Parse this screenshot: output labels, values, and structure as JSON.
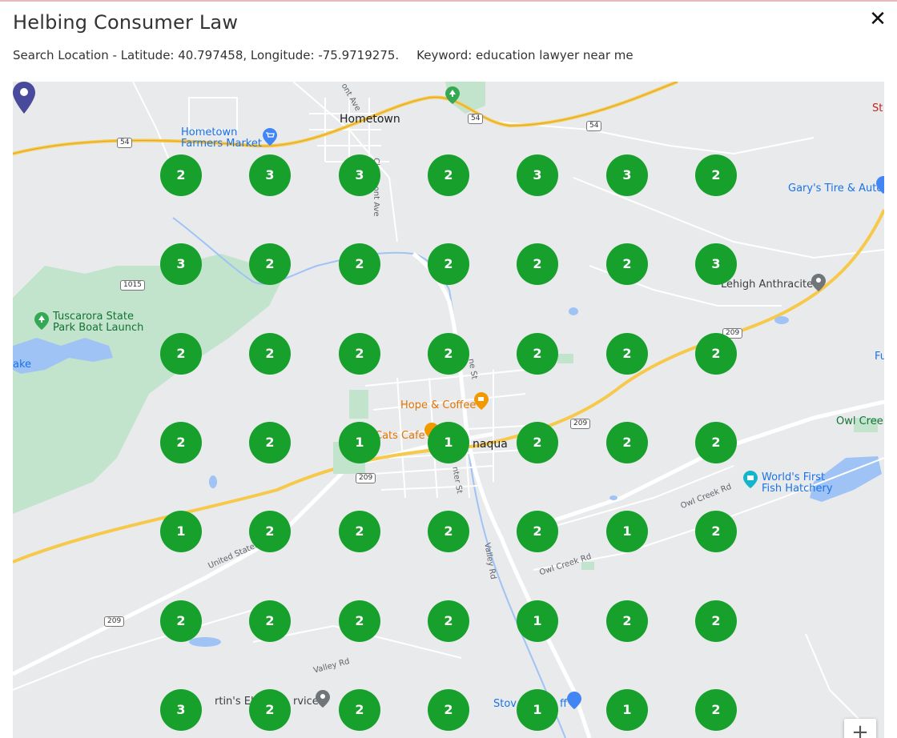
{
  "dialog": {
    "title": "Helbing Consumer Law",
    "close_icon": "close-icon",
    "search_location_text": "Search Location - Latitude: 40.797458, Longitude: -75.9719275.",
    "keyword_text": "Keyword: education lawyer near me"
  },
  "map": {
    "labels": {
      "hometown": "Hometown",
      "farmers_market": "Hometown\nFarmers Market",
      "tuscarora": "Tuscarora State\nPark Boat Launch",
      "gary": "Gary's Tire & Auto",
      "lehigh": "Lehigh Anthracite",
      "hope": "Hope & Coffee",
      "cats": "Cats Cafe",
      "tamaqua": "naqua",
      "owl_creek": "Owl Creek",
      "fish": "World's First\nFish Hatchery",
      "artins": "rtin's Elect",
      "service": "rvice",
      "stov": "Stov",
      "ff": "ff",
      "st": "St",
      "fu": "Fu",
      "lake": "ake",
      "claremont": "Claremont Ave",
      "ont_ave": "ont Ave",
      "me_st": "ne St",
      "nter_st": "nter St",
      "valley_rd": "Valley Rd",
      "valley_rd_2": "Valley Rd",
      "owl_creek_rd": "Owl Creek Rd",
      "owl_creek_rd_2": "Owl Creek Rd",
      "united_states": "United States"
    },
    "shields": {
      "r54a": "54",
      "r54b": "54",
      "r54c": "54",
      "r1015": "1015",
      "r209a": "209",
      "r209b": "209",
      "r209c": "209",
      "r209d": "209"
    },
    "zoom_in": "+"
  },
  "grid": {
    "accent_color": "#17a12c",
    "rows": [
      [
        "2",
        "3",
        "3",
        "2",
        "3",
        "3",
        "2"
      ],
      [
        "3",
        "2",
        "2",
        "2",
        "2",
        "2",
        "3"
      ],
      [
        "2",
        "2",
        "2",
        "2",
        "2",
        "2",
        "2"
      ],
      [
        "2",
        "2",
        "1",
        "1",
        "2",
        "2",
        "2"
      ],
      [
        "1",
        "2",
        "2",
        "2",
        "2",
        "1",
        "2"
      ],
      [
        "2",
        "2",
        "2",
        "2",
        "1",
        "2",
        "2"
      ],
      [
        "3",
        "2",
        "2",
        "2",
        "1",
        "1",
        "2"
      ]
    ]
  }
}
